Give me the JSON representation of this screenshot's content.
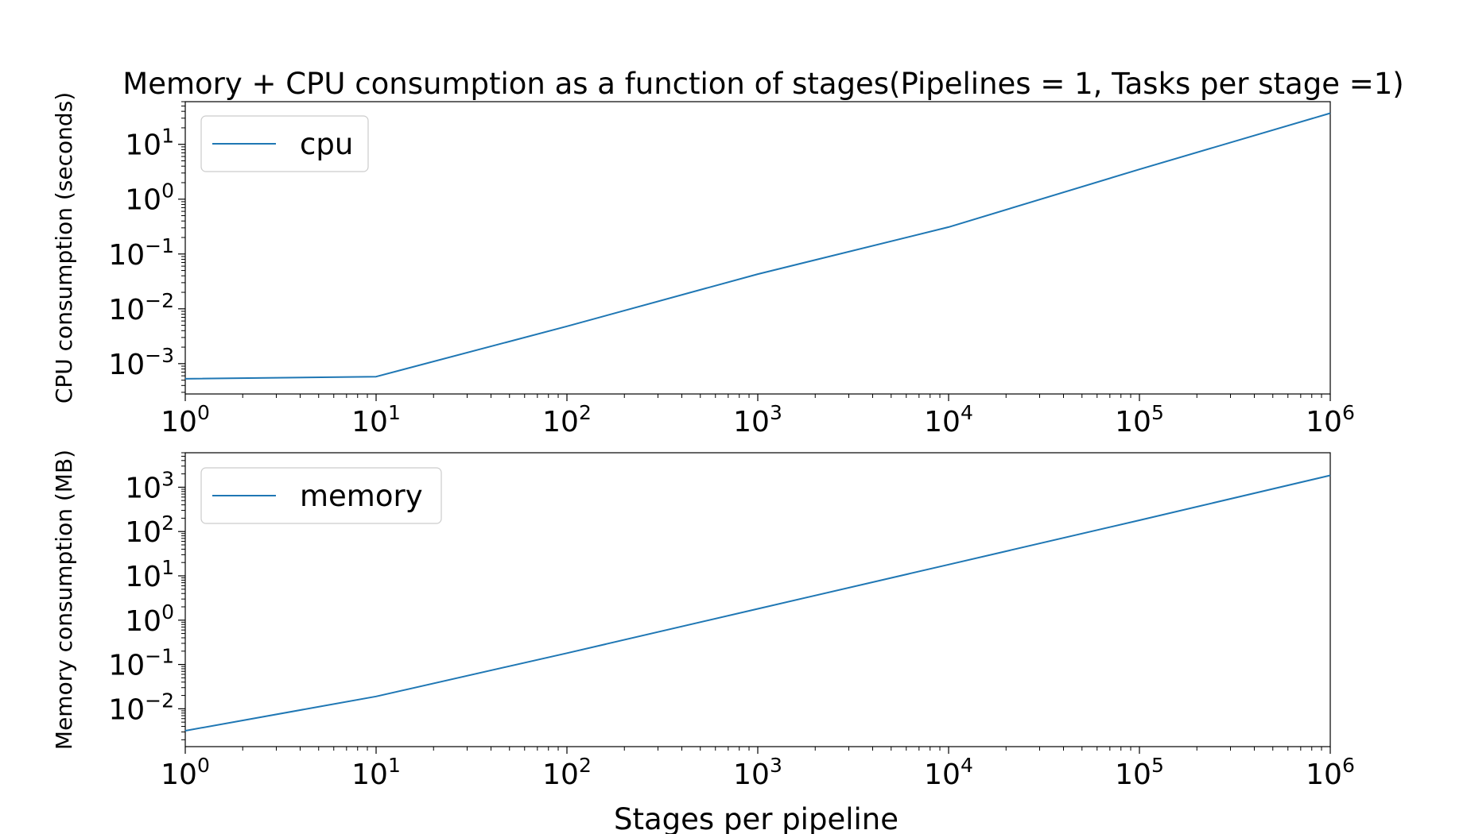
{
  "figure": {
    "title": "Memory + CPU consumption as a function of stages(Pipelines = 1, Tasks per stage =1)",
    "xlabel": "Stages per pipeline"
  },
  "chart_data": [
    {
      "type": "line",
      "x_scale": "log",
      "y_scale": "log",
      "xlabel": "",
      "ylabel": "CPU consumption (seconds)",
      "xlim": [
        1,
        1000000
      ],
      "ylim": [
        0.00028,
        60
      ],
      "xticks": [
        1,
        10,
        100,
        1000,
        10000,
        100000,
        1000000
      ],
      "xtick_labels": [
        {
          "base": "10",
          "exp": "0"
        },
        {
          "base": "10",
          "exp": "1"
        },
        {
          "base": "10",
          "exp": "2"
        },
        {
          "base": "10",
          "exp": "3"
        },
        {
          "base": "10",
          "exp": "4"
        },
        {
          "base": "10",
          "exp": "5"
        },
        {
          "base": "10",
          "exp": "6"
        }
      ],
      "yticks": [
        0.001,
        0.01,
        0.1,
        1,
        10
      ],
      "ytick_labels": [
        {
          "base": "10",
          "exp": "−3"
        },
        {
          "base": "10",
          "exp": "−2"
        },
        {
          "base": "10",
          "exp": "−1"
        },
        {
          "base": "10",
          "exp": "0"
        },
        {
          "base": "10",
          "exp": "1"
        }
      ],
      "grid": false,
      "legend_position": "upper-left",
      "series": [
        {
          "name": "cpu",
          "color": "#1f77b4",
          "x": [
            1,
            10,
            100,
            1000,
            10000,
            100000,
            1000000
          ],
          "y": [
            0.00053,
            0.00058,
            0.0048,
            0.043,
            0.31,
            3.5,
            37
          ]
        }
      ]
    },
    {
      "type": "line",
      "x_scale": "log",
      "y_scale": "log",
      "xlabel": "Stages per pipeline",
      "ylabel": "Memory consumption (MB)",
      "xlim": [
        1,
        1000000
      ],
      "ylim": [
        0.0014,
        6000
      ],
      "xticks": [
        1,
        10,
        100,
        1000,
        10000,
        100000,
        1000000
      ],
      "xtick_labels": [
        {
          "base": "10",
          "exp": "0"
        },
        {
          "base": "10",
          "exp": "1"
        },
        {
          "base": "10",
          "exp": "2"
        },
        {
          "base": "10",
          "exp": "3"
        },
        {
          "base": "10",
          "exp": "4"
        },
        {
          "base": "10",
          "exp": "5"
        },
        {
          "base": "10",
          "exp": "6"
        }
      ],
      "yticks": [
        0.01,
        0.1,
        1,
        10,
        100,
        1000
      ],
      "ytick_labels": [
        {
          "base": "10",
          "exp": "−2"
        },
        {
          "base": "10",
          "exp": "−1"
        },
        {
          "base": "10",
          "exp": "0"
        },
        {
          "base": "10",
          "exp": "1"
        },
        {
          "base": "10",
          "exp": "2"
        },
        {
          "base": "10",
          "exp": "3"
        }
      ],
      "grid": false,
      "legend_position": "upper-left",
      "series": [
        {
          "name": "memory",
          "color": "#1f77b4",
          "x": [
            1,
            10,
            100,
            1000,
            10000,
            100000,
            1000000
          ],
          "y": [
            0.0032,
            0.019,
            0.18,
            1.8,
            18,
            180,
            1850
          ]
        }
      ]
    }
  ]
}
